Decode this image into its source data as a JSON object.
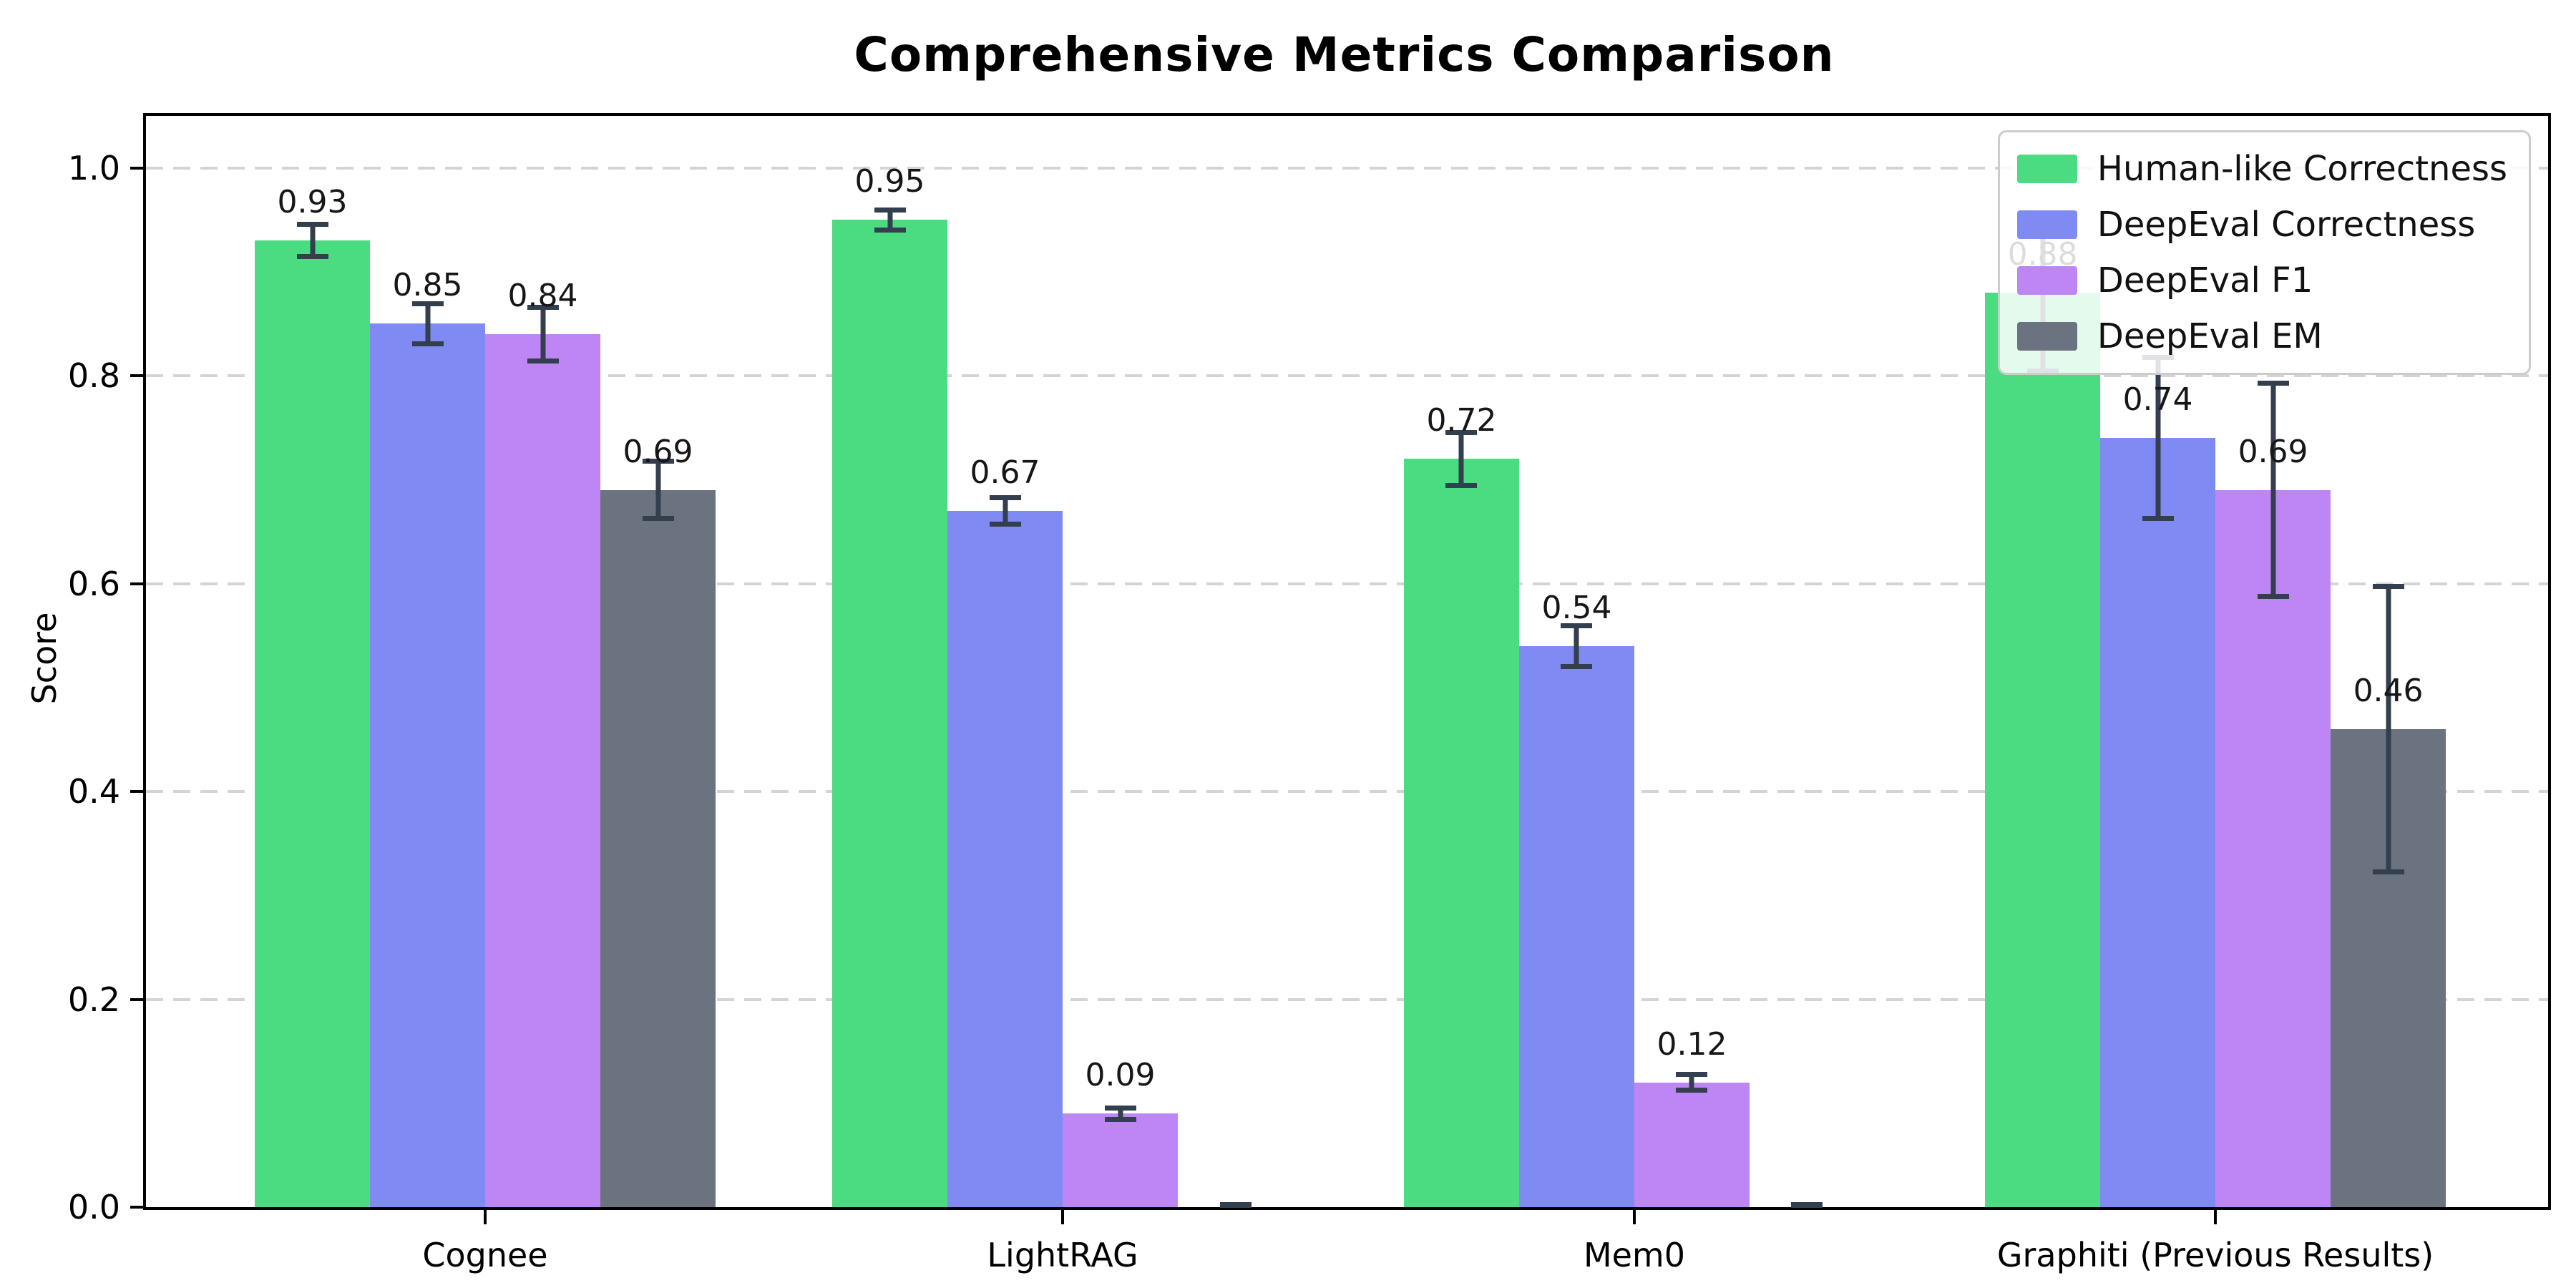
{
  "chart_data": {
    "type": "bar",
    "title": "Comprehensive Metrics Comparison",
    "xlabel": "",
    "ylabel": "Score",
    "categories": [
      "Cognee",
      "LightRAG",
      "Mem0",
      "Graphiti (Previous Results)"
    ],
    "series": [
      {
        "name": "Human-like Correctness",
        "color": "#4BDB80",
        "values": [
          0.93,
          0.95,
          0.72,
          0.88
        ],
        "errors": [
          0.018,
          0.012,
          0.028,
          0.078
        ],
        "labels": [
          "0.93",
          "0.95",
          "0.72",
          "0.88"
        ]
      },
      {
        "name": "DeepEval Correctness",
        "color": "#7F8BF2",
        "values": [
          0.85,
          0.67,
          0.54,
          0.74
        ],
        "errors": [
          0.022,
          0.015,
          0.022,
          0.08
        ],
        "labels": [
          "0.85",
          "0.67",
          "0.54",
          "0.74"
        ]
      },
      {
        "name": "DeepEval F1",
        "color": "#BE86F4",
        "values": [
          0.84,
          0.09,
          0.12,
          0.69
        ],
        "errors": [
          0.028,
          0.008,
          0.01,
          0.105
        ],
        "labels": [
          "0.84",
          "0.09",
          "0.12",
          "0.69"
        ]
      },
      {
        "name": "DeepEval EM",
        "color": "#6B7280",
        "values": [
          0.69,
          0.0,
          0.0,
          0.46
        ],
        "errors": [
          0.03,
          0.004,
          0.004,
          0.14
        ],
        "labels": [
          "0.69",
          null,
          null,
          "0.46"
        ]
      }
    ],
    "ytick_labels": [
      "0.0",
      "0.2",
      "0.4",
      "0.6",
      "0.8",
      "1.0"
    ],
    "yticks": [
      0.0,
      0.2,
      0.4,
      0.6,
      0.8,
      1.0
    ],
    "ylim": [
      0,
      1.05
    ],
    "grid": {
      "axis": "y",
      "style": "dashed",
      "color": "#D4D4D4"
    },
    "legend": {
      "position": "upper right",
      "entries": [
        "Human-like Correctness",
        "DeepEval Correctness",
        "DeepEval F1",
        "DeepEval EM"
      ]
    },
    "error_bar_color": "#333F4F",
    "background": "#FFFFFF"
  }
}
